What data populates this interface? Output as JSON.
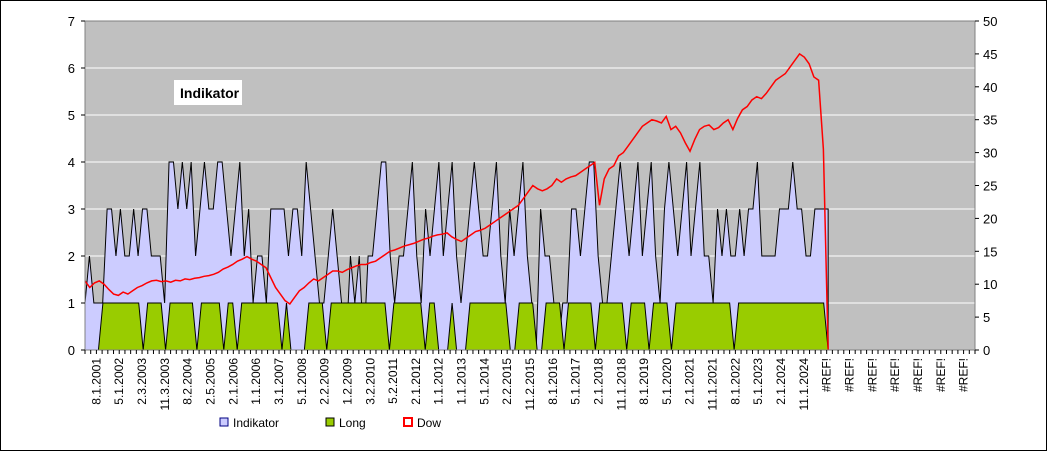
{
  "chart_data": {
    "type": "area",
    "title": "",
    "annotation": "Indikator",
    "plot_background": "#c0c0c0",
    "y_left": {
      "min": 0,
      "max": 7,
      "ticks": [
        "0",
        "1",
        "2",
        "3",
        "4",
        "5",
        "6",
        "7"
      ]
    },
    "y_right": {
      "min": 0,
      "max": 50,
      "ticks": [
        "0",
        "5",
        "10",
        "15",
        "20",
        "25",
        "30",
        "35",
        "40",
        "45",
        "50"
      ]
    },
    "x_labels": [
      "8.1.2001",
      "5.1.2002",
      "2.3.2003",
      "11.3.2003",
      "8.2.2004",
      "2.5.2005",
      "2.1.2006",
      "1.1.2006",
      "3.1.2007",
      "5.1.2008",
      "2.2.2009",
      "1.2.2009",
      "3.2.2010",
      "5.2.2011",
      "2.1.2012",
      "1.1.2012",
      "1.1.2013",
      "5.1.2014",
      "2.2.2015",
      "11.2.2015",
      "8.1.2016",
      "5.1.2017",
      "2.1.2018",
      "11.1.2018",
      "8.1.2019",
      "5.1.2020",
      "2.1.2021",
      "11.1.2021",
      "8.1.2022",
      "5.1.2023",
      "2.1.2024",
      "11.1.2024",
      "#REF!",
      "#REF!",
      "#REF!",
      "#REF!",
      "#REF!",
      "#REF!",
      "#REF!"
    ],
    "legend": [
      {
        "label": "Indikator",
        "color": "#ccccff",
        "border": "#000080"
      },
      {
        "label": "Long",
        "color": "#99cc00",
        "border": "#000000"
      },
      {
        "label": "Dow",
        "color": "#ff0000",
        "border": "#ff0000"
      }
    ],
    "data_fraction": 0.835,
    "series": [
      {
        "name": "Indikator",
        "axis": "left",
        "color": "#ccccff",
        "stroke": "#000000",
        "values": [
          1,
          2,
          1,
          1,
          1,
          3,
          3,
          2,
          3,
          2,
          2,
          3,
          2,
          3,
          3,
          2,
          2,
          2,
          1,
          4,
          4,
          3,
          4,
          3,
          4,
          2,
          3,
          4,
          3,
          3,
          4,
          4,
          3,
          2,
          3,
          4,
          2,
          3,
          1,
          2,
          2,
          1,
          3,
          3,
          3,
          3,
          2,
          3,
          3,
          2,
          4,
          3,
          2,
          1,
          1,
          2,
          3,
          2,
          1,
          0,
          2,
          1,
          2,
          0,
          2,
          2,
          3,
          4,
          4,
          2,
          1,
          2,
          2,
          3,
          4,
          2,
          1,
          3,
          2,
          3,
          4,
          2,
          3,
          4,
          2,
          1,
          2,
          3,
          4,
          3,
          2,
          2,
          3,
          4,
          2,
          1,
          3,
          2,
          3,
          4,
          2,
          1,
          0,
          3,
          2,
          2,
          1,
          0,
          1,
          1,
          3,
          3,
          2,
          3,
          4,
          4,
          2,
          1,
          1,
          2,
          3,
          4,
          3,
          2,
          3,
          4,
          2,
          3,
          4,
          2,
          1,
          3,
          4,
          3,
          2,
          3,
          4,
          2,
          3,
          4,
          2,
          2,
          1,
          3,
          2,
          3,
          2,
          2,
          3,
          2,
          3,
          3,
          4,
          2,
          2,
          2,
          2,
          3,
          3,
          3,
          4,
          3,
          3,
          2,
          2,
          3,
          3,
          3,
          3
        ]
      },
      {
        "name": "Long",
        "axis": "left",
        "color": "#99cc00",
        "stroke": "#000000",
        "values": [
          0,
          0,
          0,
          0,
          1,
          1,
          1,
          1,
          1,
          1,
          1,
          1,
          1,
          0,
          1,
          1,
          1,
          1,
          0,
          1,
          1,
          1,
          1,
          1,
          1,
          0,
          1,
          1,
          1,
          1,
          1,
          0,
          1,
          1,
          0,
          1,
          1,
          1,
          1,
          1,
          1,
          1,
          1,
          1,
          0,
          1,
          0,
          0,
          0,
          0,
          1,
          1,
          1,
          1,
          0,
          1,
          1,
          1,
          1,
          1,
          1,
          1,
          1,
          1,
          1,
          1,
          1,
          1,
          0,
          1,
          1,
          1,
          1,
          1,
          1,
          1,
          0,
          1,
          1,
          0,
          0,
          0,
          1,
          0,
          0,
          0,
          1,
          1,
          1,
          1,
          1,
          1,
          1,
          1,
          1,
          0,
          0,
          1,
          1,
          1,
          1,
          0,
          0,
          1,
          1,
          1,
          1,
          0,
          1,
          1,
          1,
          1,
          1,
          1,
          0,
          1,
          1,
          1,
          1,
          1,
          1,
          0,
          1,
          1,
          1,
          1,
          0,
          1,
          1,
          1,
          1,
          0,
          1,
          1,
          1,
          1,
          1,
          1,
          1,
          1,
          1,
          1,
          1,
          1,
          1,
          0,
          1,
          1,
          1,
          1,
          1,
          1,
          1,
          1,
          1,
          1,
          1,
          1,
          1,
          1,
          1,
          1,
          1,
          1,
          1,
          1,
          0
        ]
      },
      {
        "name": "Dow",
        "axis": "right",
        "color": "#ff0000",
        "values": [
          10.5,
          9.5,
          10.2,
          10.5,
          10,
          9.2,
          8.5,
          8.3,
          8.8,
          8.5,
          9,
          9.5,
          9.8,
          10.2,
          10.5,
          10.6,
          10.4,
          10.5,
          10.3,
          10.6,
          10.5,
          10.8,
          10.7,
          10.9,
          11,
          11.2,
          11.3,
          11.5,
          11.8,
          12.3,
          12.6,
          13,
          13.5,
          13.8,
          14.2,
          13.8,
          13.5,
          13,
          12.5,
          11,
          9.5,
          8.5,
          7.5,
          7,
          8,
          9,
          9.5,
          10.2,
          10.8,
          10.5,
          11,
          11.5,
          12,
          12,
          11.8,
          12.2,
          12.5,
          12.8,
          13,
          13,
          13.3,
          13.5,
          14,
          14.5,
          15,
          15.2,
          15.5,
          15.8,
          16,
          16.2,
          16.5,
          16.8,
          17,
          17.3,
          17.5,
          17.6,
          17.8,
          17.2,
          16.8,
          16.5,
          17,
          17.5,
          18,
          18.2,
          18.5,
          19,
          19.5,
          20,
          20.5,
          21,
          21.5,
          22,
          23,
          24,
          25,
          24.5,
          24.2,
          24.5,
          25,
          26,
          25.5,
          26,
          26.3,
          26.5,
          27,
          27.5,
          28,
          28.5,
          22,
          26,
          27.5,
          28,
          29.5,
          30,
          31,
          32,
          33,
          34,
          34.5,
          35,
          34.8,
          34.5,
          35.5,
          33.5,
          34,
          33,
          31.5,
          30.2,
          32,
          33.5,
          34,
          34.2,
          33.5,
          33.8,
          34.5,
          35,
          33.5,
          35.2,
          36.5,
          37,
          38,
          38.5,
          38.2,
          39,
          40,
          41,
          41.5,
          42,
          43,
          44,
          45,
          44.5,
          43.5,
          41.5,
          41,
          30.5,
          0
        ]
      }
    ]
  }
}
